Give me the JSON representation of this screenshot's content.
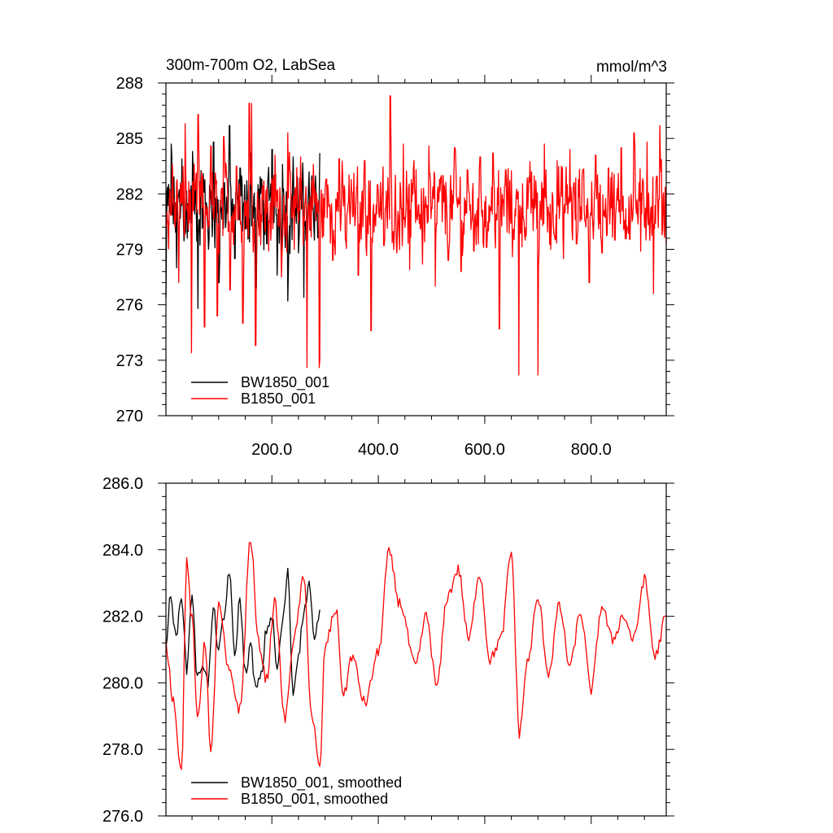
{
  "chart_data": [
    {
      "type": "line",
      "title_left": "300m-700m O2, LabSea",
      "title_right": "mmol/m^3",
      "xlim": [
        1,
        941
      ],
      "ylim": [
        270,
        288
      ],
      "x_ticks": [
        200,
        400,
        600,
        800
      ],
      "x_tick_labels": [
        "200.0",
        "400.0",
        "600.0",
        "800.0"
      ],
      "y_ticks": [
        270,
        273,
        276,
        279,
        282,
        285,
        288
      ],
      "y_tick_labels": [
        "270",
        "273",
        "276",
        "279",
        "282",
        "285",
        "288"
      ],
      "legend_position": "bottom-left",
      "series": [
        {
          "name": "BW1850_001",
          "color": "#000000",
          "x_start": 1,
          "x_end": 290,
          "mean": 281.2,
          "values_sampled": [
            276.4,
            284.7,
            278.0,
            283.9,
            279.6,
            284.3,
            275.8,
            283.1,
            279.0,
            284.8,
            277.2,
            282.6,
            285.7,
            278.5,
            283.4,
            280.1,
            284.2,
            276.9,
            282.8,
            279.3,
            284.4,
            277.6,
            283.6,
            276.2,
            284.0,
            278.8,
            276.4,
            283.2,
            279.5,
            284.2
          ]
        },
        {
          "name": "B1850_001",
          "color": "#ff0000",
          "x_start": 1,
          "x_end": 941,
          "mean": 281.3,
          "values_sampled": [
            280.5,
            283.6,
            277.2,
            285.8,
            273.4,
            286.3,
            274.8,
            284.6,
            275.4,
            285.1,
            276.8,
            283.5,
            275.0,
            286.9,
            273.8,
            282.4,
            278.9,
            284.1,
            277.5,
            285.3,
            279.0,
            284.0,
            272.6,
            283.6,
            273.0,
            282.8,
            278.4,
            283.9,
            279.5,
            282.1,
            277.6,
            283.8,
            274.6,
            282.5,
            279.2,
            287.3,
            278.8,
            284.7,
            277.9,
            283.3,
            278.2,
            284.6,
            277.0,
            283.0,
            278.4,
            284.5,
            277.8,
            283.3,
            278.9,
            284.0,
            279.1,
            284.2,
            274.7,
            283.3,
            278.6,
            285.2,
            279.5,
            283.2,
            272.2,
            284.7,
            279.0,
            283.8,
            278.5,
            284.4,
            279.3,
            283.3,
            277.2,
            284.1,
            278.8,
            283.4,
            279.5,
            284.5,
            280.1,
            285.3,
            278.9,
            284.8,
            276.6,
            285.7,
            279.3
          ]
        }
      ],
      "peaks": [
        {
          "series": "B1850_001",
          "x": 422,
          "y": 287.3
        },
        {
          "series": "B1850_001",
          "x": 664,
          "y": 272.2
        },
        {
          "series": "B1850_001",
          "x": 289,
          "y": 272.6
        },
        {
          "series": "B1850_001",
          "x": 162,
          "y": 286.9
        }
      ]
    },
    {
      "type": "line",
      "xlim": [
        1,
        941
      ],
      "ylim": [
        276,
        286
      ],
      "y_ticks": [
        276,
        278,
        280,
        282,
        284,
        286
      ],
      "y_tick_labels": [
        "276.0",
        "278.0",
        "280.0",
        "282.0",
        "284.0",
        "286.0"
      ],
      "legend_position": "bottom-left",
      "series": [
        {
          "name": "BW1850_001, smoothed",
          "color": "#000000",
          "x": [
            1,
            10,
            20,
            30,
            40,
            50,
            60,
            70,
            80,
            90,
            100,
            110,
            120,
            130,
            140,
            150,
            160,
            170,
            180,
            190,
            200,
            210,
            220,
            230,
            240,
            250,
            260,
            270,
            280,
            290
          ],
          "values": [
            281.2,
            282.6,
            281.3,
            282.7,
            280.4,
            282.7,
            280.1,
            280.6,
            280.0,
            282.2,
            281.0,
            281.9,
            283.4,
            280.8,
            282.5,
            280.3,
            281.1,
            279.8,
            280.2,
            281.6,
            282.0,
            280.4,
            281.8,
            283.3,
            279.7,
            280.9,
            282.1,
            283.0,
            281.2,
            282.2
          ]
        },
        {
          "name": "B1850_001, smoothed",
          "color": "#ff0000",
          "x": [
            1,
            15,
            30,
            40,
            50,
            60,
            75,
            85,
            100,
            120,
            140,
            160,
            175,
            190,
            205,
            225,
            240,
            260,
            275,
            290,
            300,
            320,
            335,
            350,
            375,
            400,
            420,
            440,
            470,
            490,
            510,
            530,
            550,
            570,
            590,
            610,
            630,
            650,
            665,
            680,
            700,
            720,
            740,
            760,
            780,
            800,
            820,
            840,
            860,
            880,
            900,
            920,
            941
          ],
          "values": [
            281.1,
            279.5,
            277.3,
            283.6,
            281.9,
            279.0,
            281.2,
            277.8,
            282.3,
            280.3,
            279.2,
            284.3,
            281.2,
            280.1,
            282.4,
            278.9,
            281.2,
            283.1,
            279.0,
            277.4,
            281.1,
            282.2,
            279.6,
            280.8,
            279.4,
            280.9,
            283.9,
            282.4,
            280.5,
            282.0,
            279.9,
            282.6,
            283.4,
            281.3,
            283.3,
            280.7,
            281.3,
            283.9,
            278.5,
            280.6,
            282.5,
            280.3,
            282.3,
            280.5,
            282.1,
            279.8,
            282.3,
            281.3,
            282.0,
            281.3,
            283.1,
            280.8,
            282.0
          ]
        }
      ]
    }
  ]
}
